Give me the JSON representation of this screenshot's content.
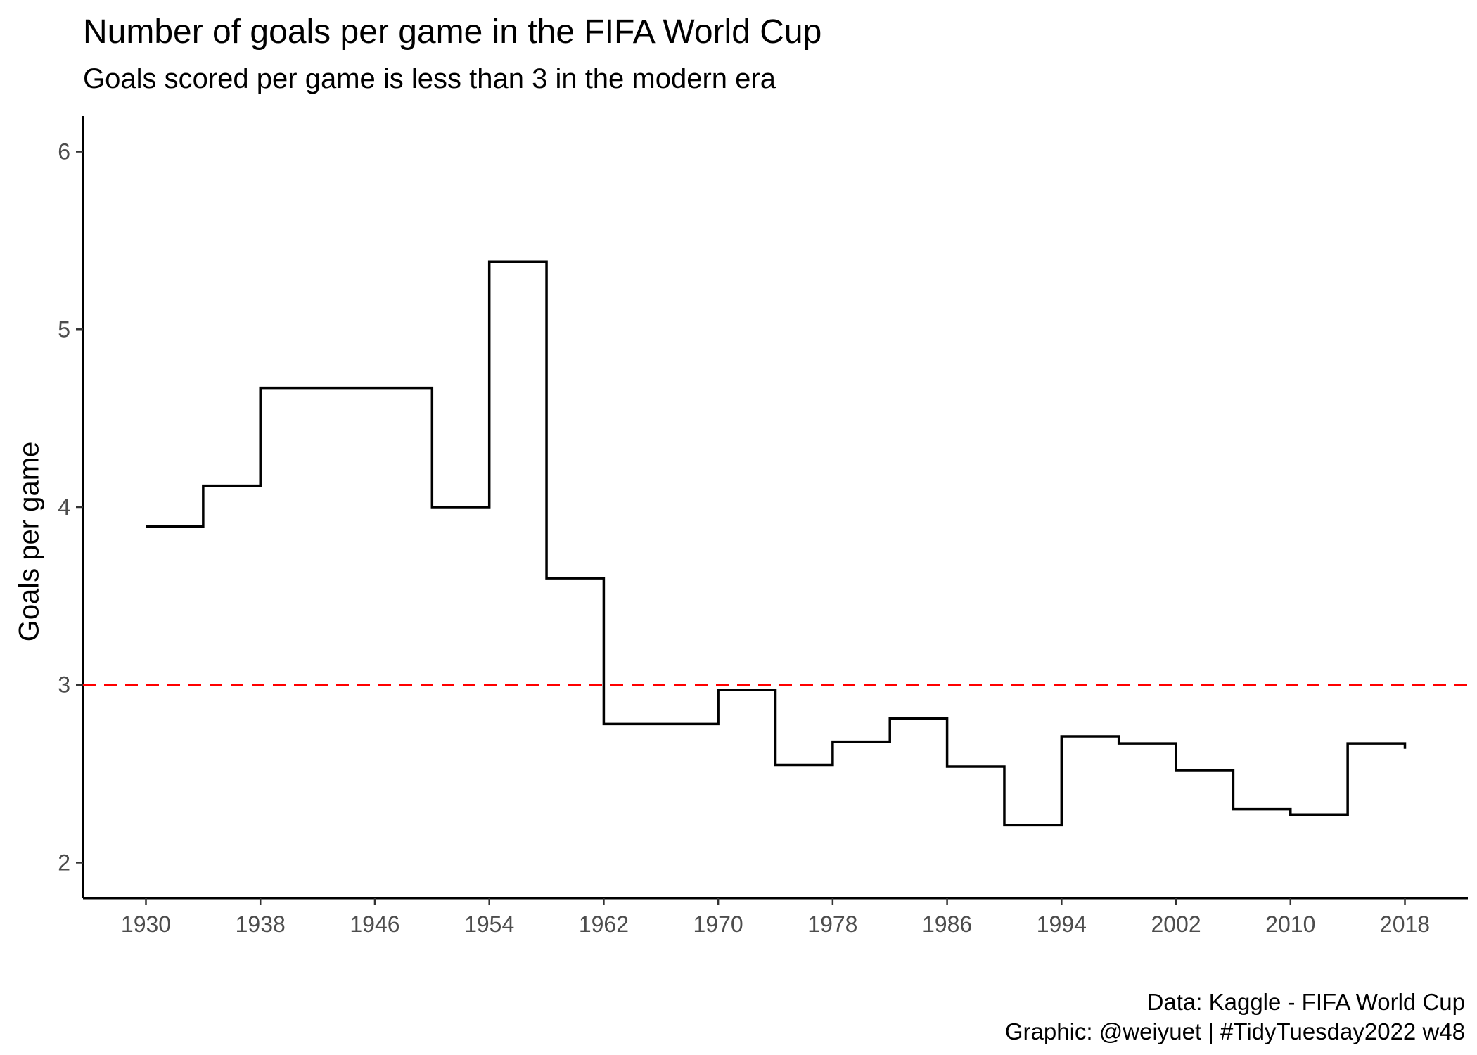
{
  "chart_data": {
    "type": "line",
    "subtype": "step",
    "title": "Number of goals per game in the FIFA World Cup",
    "subtitle": "Goals scored per game is less than 3 in the modern era",
    "xlabel": "",
    "ylabel": "Goals per game",
    "caption_lines": [
      "Data: Kaggle - FIFA World Cup",
      "Graphic: @weiyuet | #TidyTuesday2022 w48"
    ],
    "xlim": [
      1925.6,
      2022.4
    ],
    "ylim": [
      1.8,
      6.2
    ],
    "x_ticks": [
      1930,
      1938,
      1946,
      1954,
      1962,
      1970,
      1978,
      1986,
      1994,
      2002,
      2010,
      2018
    ],
    "y_ticks": [
      2,
      3,
      4,
      5,
      6
    ],
    "grid": false,
    "series": [
      {
        "color": "#000000",
        "x": [
          1930,
          1934,
          1938,
          1950,
          1954,
          1958,
          1962,
          1966,
          1970,
          1974,
          1978,
          1982,
          1986,
          1990,
          1994,
          1998,
          2002,
          2006,
          2010,
          2014,
          2018
        ],
        "y": [
          3.89,
          4.12,
          4.67,
          4.0,
          5.38,
          3.6,
          2.78,
          2.78,
          2.97,
          2.55,
          2.68,
          2.81,
          2.54,
          2.21,
          2.71,
          2.67,
          2.52,
          2.3,
          2.27,
          2.67,
          2.64
        ]
      }
    ],
    "reference_line": {
      "y": 3,
      "color": "#ff0000",
      "style": "dashed"
    }
  }
}
